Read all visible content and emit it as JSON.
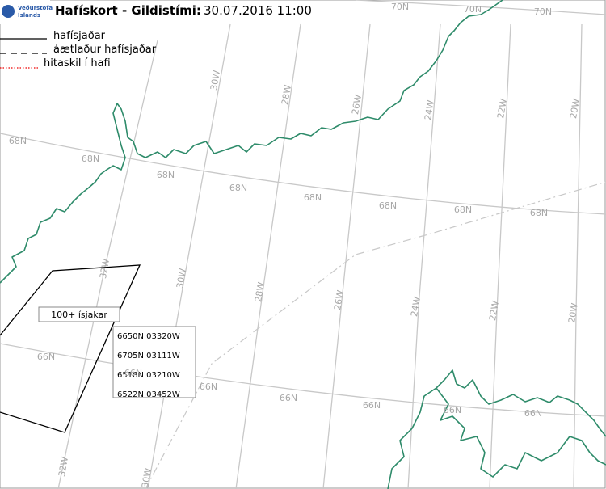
{
  "header": {
    "title": "Hafískort - Gildistími:",
    "timestamp": "30.07.2016 11:00",
    "logo_text": [
      "Veðurstofa",
      "Íslands"
    ]
  },
  "legend": {
    "items": [
      "hafísjaðar",
      "áætlaður hafísjaðar",
      "hitaskil í hafi"
    ]
  },
  "annotations": {
    "iceberg_label": "100+ ísjakar",
    "coordinates": [
      "6650N 03320W",
      "6705N 03111W",
      "6518N 03210W",
      "6522N 03452W"
    ]
  },
  "latitude_labels": [
    "70N",
    "70N",
    "70N",
    "68N",
    "68N",
    "68N",
    "68N",
    "68N",
    "68N",
    "68N",
    "68N",
    "66N",
    "66N",
    "66N",
    "66N",
    "66N",
    "66N",
    "66N"
  ],
  "longitude_labels": [
    "30W",
    "28W",
    "26W",
    "24W",
    "22W",
    "20W",
    "30W",
    "28W",
    "26W",
    "24W",
    "22W",
    "20W",
    "32W",
    "32W",
    "30W"
  ]
}
